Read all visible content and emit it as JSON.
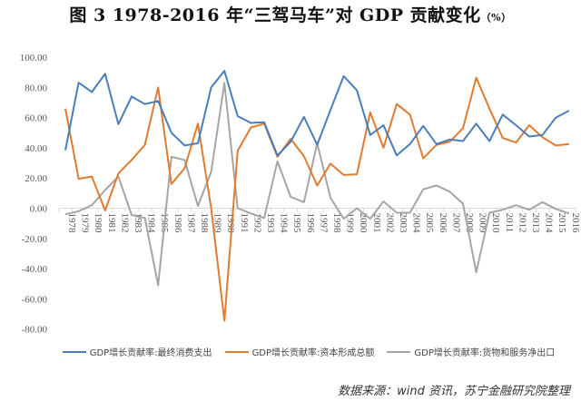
{
  "title": {
    "main": "图 3 1978-2016 年“三驾马车”对 GDP 贡献变化",
    "unit": "（%）"
  },
  "source": "数据来源：wind 资讯，苏宁金融研究院整理",
  "colors": {
    "consumption": "#4a7ebb",
    "capital": "#e07b30",
    "net_exports": "#a5a5a5",
    "axis": "#d9d9d9",
    "tick_text": "#595959"
  },
  "chart_data": {
    "type": "line",
    "title": "图 3 1978-2016 年“三驾马车”对 GDP 贡献变化（%）",
    "xlabel": "",
    "ylabel": "",
    "ylim": [
      -80,
      100
    ],
    "yticks": [
      "100.00",
      "80.00",
      "60.00",
      "40.00",
      "20.00",
      "0.00",
      "-20.00",
      "-40.00",
      "-60.00",
      "-80.00"
    ],
    "ytick_values": [
      100,
      80,
      60,
      40,
      20,
      0,
      -20,
      -40,
      -60,
      -80
    ],
    "grid": false,
    "legend_position": "bottom",
    "x": [
      "1978",
      "1979",
      "1980",
      "1981",
      "1982",
      "1983",
      "1984",
      "1985",
      "1986",
      "1987",
      "1988",
      "1989",
      "1990",
      "1991",
      "1992",
      "1993",
      "1994",
      "1995",
      "1996",
      "1997",
      "1998",
      "1999",
      "2000",
      "2001",
      "2002",
      "2003",
      "2004",
      "2005",
      "2006",
      "2007",
      "2008",
      "2009",
      "2010",
      "2011",
      "2012",
      "2013",
      "2014",
      "2015",
      "2016"
    ],
    "series": [
      {
        "name": "GDP增长贡献率:最终消费支出",
        "color": "#4a7ebb",
        "values": [
          38.4,
          83.2,
          77,
          89,
          55.7,
          74,
          69,
          71,
          50,
          41.5,
          43,
          80,
          91,
          61,
          56.5,
          57,
          35,
          44,
          60.5,
          42,
          65,
          87.5,
          78,
          48.5,
          55,
          35,
          42.5,
          54.5,
          42.5,
          45.5,
          44.5,
          56,
          44.5,
          62,
          55,
          47.5,
          48.5,
          60,
          64.6
        ]
      },
      {
        "name": "GDP增长贡献率:资本形成总额",
        "color": "#e07b30",
        "values": [
          66,
          19.5,
          21,
          -1.5,
          23,
          32,
          42,
          80,
          16,
          26.5,
          56,
          0,
          -74.5,
          38,
          53.5,
          56,
          34,
          46,
          34.5,
          15,
          29.5,
          22,
          22.5,
          63.5,
          40,
          69,
          62,
          33,
          42,
          44,
          53,
          86.5,
          66,
          46.5,
          43.5,
          55,
          47,
          41.5,
          42.5
        ]
      },
      {
        "name": "GDP增长贡献率:货物和服务净出口",
        "color": "#a5a5a5",
        "values": [
          -4,
          -2,
          2,
          12,
          21,
          -4.5,
          -6.5,
          -51,
          34,
          32,
          1.5,
          24,
          83,
          0,
          -3.5,
          -6.5,
          31,
          7.5,
          4,
          43,
          7,
          -7,
          0,
          -7,
          4.5,
          -3,
          -3,
          12.5,
          15,
          11,
          3,
          -42.5,
          -3,
          -1,
          2,
          -1,
          4,
          -0.5,
          -3.5
        ]
      }
    ]
  }
}
